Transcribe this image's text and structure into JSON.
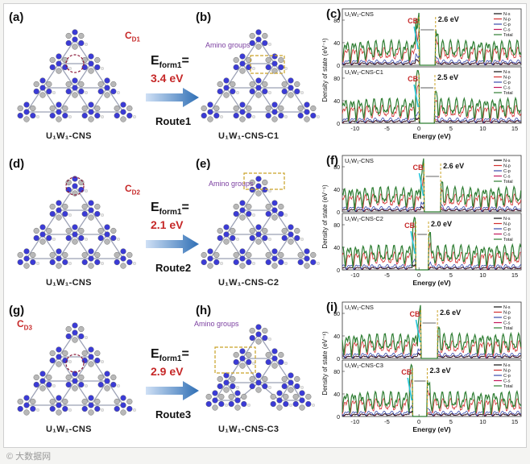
{
  "figure": {
    "panels": [
      {
        "label_left": "(a)",
        "caption_left": "U₁W₁-CNS",
        "cd_label": "C",
        "cd_sub": "D1",
        "label_mid": "(b)",
        "caption_mid": "U₁W₁-CNS-C1",
        "amino_label": "Amino groups",
        "eform_label": "E",
        "eform_sub": "form1",
        "eform_eq": "=",
        "eform_value": "3.4 eV",
        "route": "Route1",
        "label_dos": "(c)"
      },
      {
        "label_left": "(d)",
        "caption_left": "U₁W₁-CNS",
        "cd_label": "C",
        "cd_sub": "D2",
        "label_mid": "(e)",
        "caption_mid": "U₁W₁-CNS-C2",
        "amino_label": "Amino groups",
        "eform_label": "E",
        "eform_sub": "form1",
        "eform_eq": "=",
        "eform_value": "2.1 eV",
        "route": "Route2",
        "label_dos": "(f)"
      },
      {
        "label_left": "(g)",
        "caption_left": "U₁W₁-CNS",
        "cd_label": "C",
        "cd_sub": "D3",
        "label_mid": "(h)",
        "caption_mid": "U₁W₁-CNS-C3",
        "amino_label": "Amino groups",
        "eform_label": "E",
        "eform_sub": "form1",
        "eform_eq": "=",
        "eform_value": "2.9 eV",
        "route": "Route3",
        "label_dos": "(i)"
      }
    ],
    "watermark": "© 大数据网"
  },
  "chart_data": [
    {
      "type": "line",
      "panel": "c",
      "xlabel": "Energy (eV)",
      "ylabel": "Density of state (eV⁻¹)",
      "xlim": [
        -12,
        16
      ],
      "xticks": [
        -10,
        -5,
        0,
        5,
        10,
        15
      ],
      "legend": [
        "N-s",
        "N-p",
        "C-p",
        "C-s",
        "Total"
      ],
      "colors": {
        "N-s": "#111111",
        "N-p": "#d32f2f",
        "C-p": "#3949ab",
        "C-s": "#c2185b",
        "Total": "#2e7d32"
      },
      "subplots": [
        {
          "title": "U₁W₁-CNS",
          "yticks": [
            0,
            40,
            80
          ],
          "ylim": [
            0,
            100
          ],
          "gap_ev": "2.6 eV",
          "cb": "CB",
          "vbm": 0.0,
          "cbm": 2.6
        },
        {
          "title": "U₁W₁-CNS-C1",
          "yticks": [
            0,
            40,
            80
          ],
          "ylim": [
            0,
            100
          ],
          "gap_ev": "2.5 eV",
          "cb": "CB",
          "vbm": 0.0,
          "cbm": 2.5
        }
      ]
    },
    {
      "type": "line",
      "panel": "f",
      "xlabel": "Energy (eV)",
      "ylabel": "Density of state (eV⁻¹)",
      "xlim": [
        -12,
        16
      ],
      "xticks": [
        -10,
        -5,
        0,
        5,
        10,
        15
      ],
      "legend": [
        "N-s",
        "N-p",
        "C-p",
        "C-s",
        "Total"
      ],
      "colors": {
        "N-s": "#111111",
        "N-p": "#d32f2f",
        "C-p": "#3949ab",
        "C-s": "#c2185b",
        "Total": "#2e7d32"
      },
      "subplots": [
        {
          "title": "U₁W₁-CNS",
          "yticks": [
            0,
            40,
            80
          ],
          "ylim": [
            0,
            100
          ],
          "gap_ev": "2.6 eV",
          "cb": "CB",
          "vbm": 0.8,
          "cbm": 3.4
        },
        {
          "title": "U₁W₁-CNS-C2",
          "yticks": [
            0,
            40,
            80
          ],
          "ylim": [
            0,
            100
          ],
          "gap_ev": "2.0 eV",
          "cb": "CB",
          "vbm": -0.5,
          "cbm": 1.5
        }
      ]
    },
    {
      "type": "line",
      "panel": "i",
      "xlabel": "Energy (eV)",
      "ylabel": "Density of state (eV⁻¹)",
      "xlim": [
        -12,
        16
      ],
      "xticks": [
        -10,
        -5,
        0,
        5,
        10,
        15
      ],
      "legend": [
        "N-s",
        "N-p",
        "C-p",
        "C-s",
        "Total"
      ],
      "colors": {
        "N-s": "#111111",
        "N-p": "#d32f2f",
        "C-p": "#3949ab",
        "C-s": "#c2185b",
        "Total": "#2e7d32"
      },
      "subplots": [
        {
          "title": "U₁W₁-CNS",
          "yticks": [
            0,
            40,
            80
          ],
          "ylim": [
            0,
            100
          ],
          "gap_ev": "2.6 eV",
          "cb": "CB",
          "vbm": 0.3,
          "cbm": 2.9
        },
        {
          "title": "U₁W₁-CNS-C3",
          "yticks": [
            0,
            40,
            80
          ],
          "ylim": [
            0,
            100
          ],
          "gap_ev": "2.3 eV",
          "cb": "CB",
          "vbm": -1.0,
          "cbm": 1.3
        }
      ]
    }
  ]
}
